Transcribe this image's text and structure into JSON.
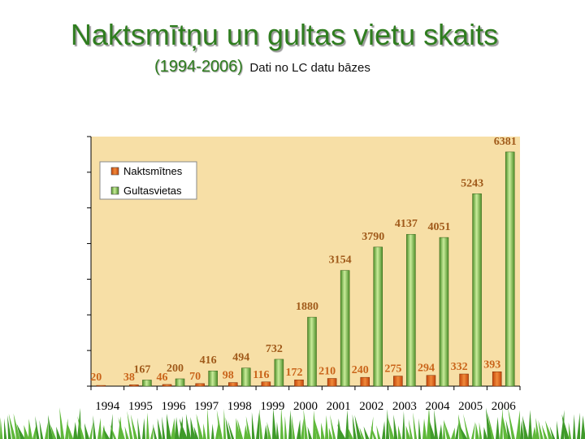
{
  "title": "Naktsmītņu un gultas vietu skaits",
  "subtitle_years": "(1994-2006)",
  "subtitle_note": "Dati no LC datu bāzes",
  "colors": {
    "title": "#2f7d1f",
    "plot_bg": "#f7dfa6",
    "naktsmitnes": "#e8641a",
    "gultasvietas": "#7fbf3f",
    "label_naktsmitnes": "#c9641a",
    "label_gultasvietas": "#a05a1a",
    "grass": "#3f9a2a"
  },
  "chart_data": {
    "type": "bar",
    "categories": [
      "1994",
      "1995",
      "1996",
      "1997",
      "1998",
      "1999",
      "2000",
      "2001",
      "2002",
      "2003",
      "2004",
      "2005",
      "2006"
    ],
    "series": [
      {
        "name": "Naktsmītnes",
        "values": [
          20,
          38,
          46,
          70,
          98,
          116,
          172,
          210,
          240,
          275,
          294,
          332,
          393
        ]
      },
      {
        "name": "Gultasvietas",
        "values": [
          null,
          167,
          200,
          416,
          494,
          732,
          1880,
          3154,
          3790,
          4137,
          4051,
          5243,
          6381
        ]
      }
    ],
    "ylim": [
      0,
      6800
    ],
    "grid": false,
    "legend": "top-left"
  }
}
